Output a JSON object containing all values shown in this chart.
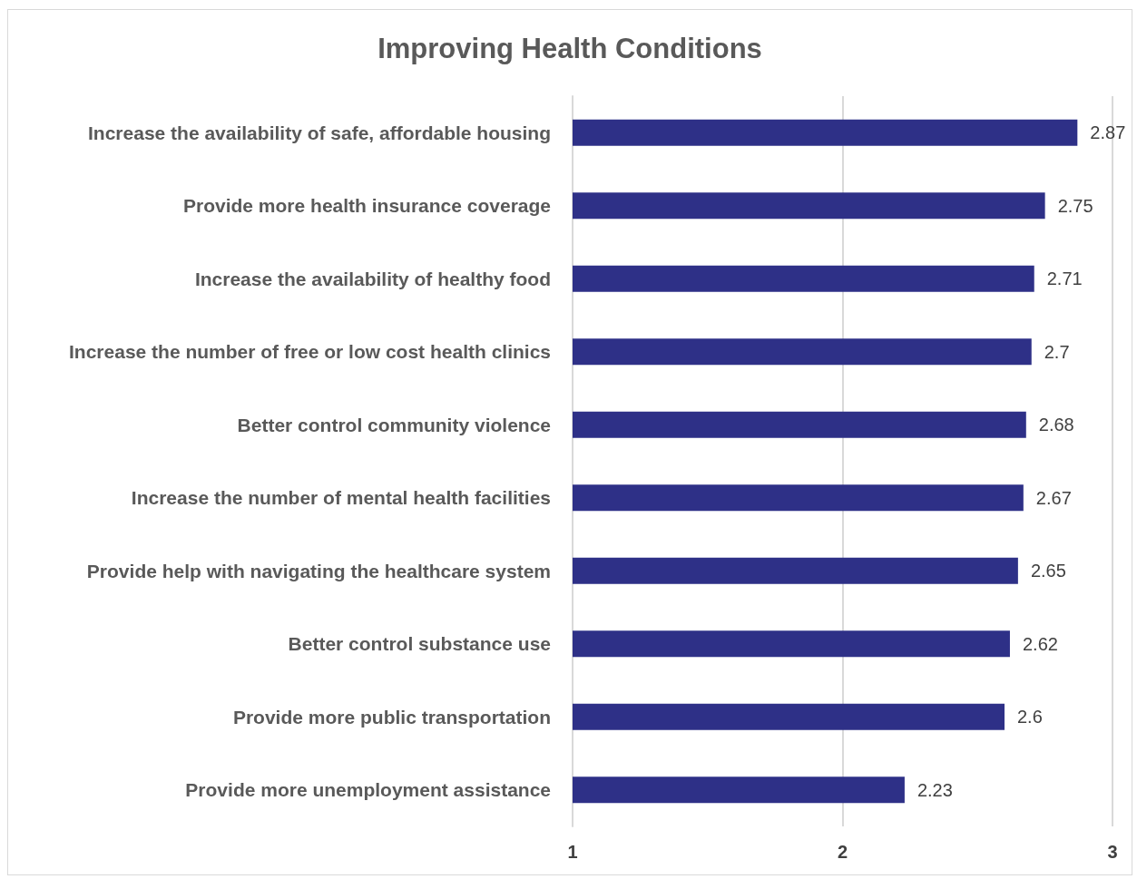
{
  "chart_data": {
    "type": "bar",
    "title": "Improving Health Conditions",
    "orientation": "horizontal",
    "categories": [
      "Increase the availability of safe, affordable housing",
      "Provide more health insurance coverage",
      "Increase the availability of healthy food",
      "Increase the number of free or low cost health clinics",
      "Better control community violence",
      "Increase the number of mental health facilities",
      "Provide help with navigating the healthcare system",
      "Better control substance use",
      "Provide more public transportation",
      "Provide more unemployment assistance"
    ],
    "values": [
      2.87,
      2.75,
      2.71,
      2.7,
      2.68,
      2.67,
      2.65,
      2.62,
      2.6,
      2.23
    ],
    "color": "#2e3087",
    "xlim": [
      1,
      3
    ],
    "xticks": [
      1,
      2,
      3
    ],
    "grid": "x",
    "data_labels": true
  }
}
